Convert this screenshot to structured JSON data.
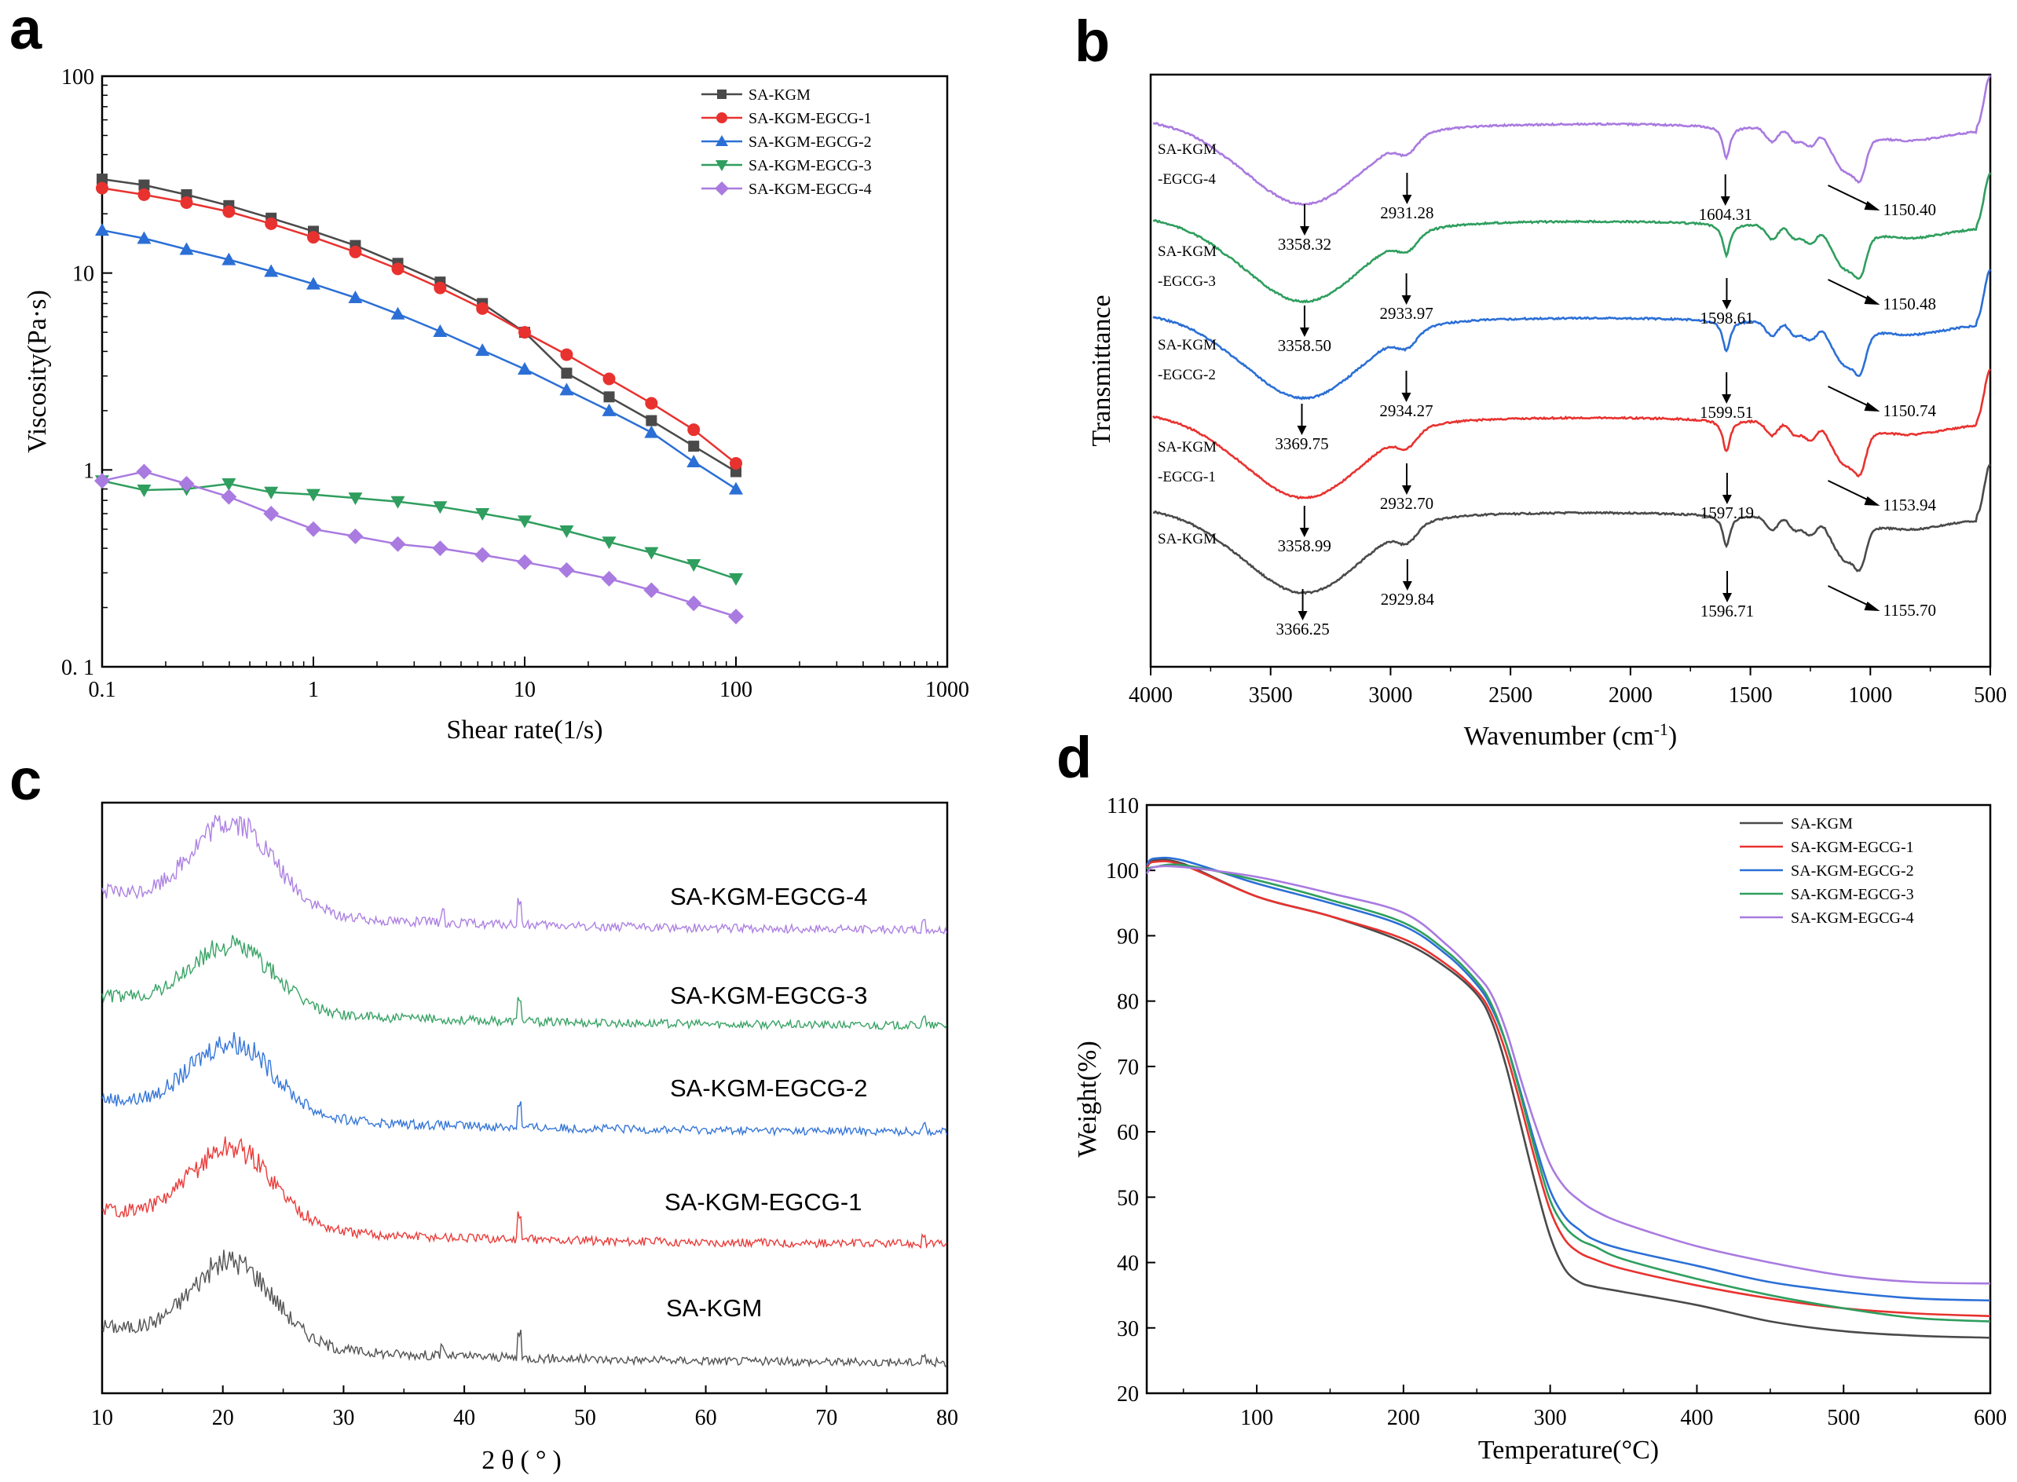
{
  "colors": {
    "SA-KGM": "#4a4a4a",
    "SA-KGM-EGCG-1": "#e8322f",
    "SA-KGM-EGCG-2": "#2b6fd6",
    "SA-KGM-EGCG-3": "#2f9e5e",
    "SA-KGM-EGCG-4": "#a97ae0"
  },
  "chart_data": [
    {
      "panel": "a",
      "type": "line",
      "xscale": "log",
      "yscale": "log",
      "xlabel": "Shear rate(1/s)",
      "ylabel": "Viscosity(Pa·s)",
      "xlim": [
        0.1,
        1000
      ],
      "ylim": [
        0.1,
        100
      ],
      "xticks": [
        0.1,
        1,
        10,
        100,
        1000
      ],
      "xtick_labels": [
        "0.1",
        "1",
        "10",
        "100",
        "1000"
      ],
      "yticks": [
        0.1,
        1,
        10,
        100
      ],
      "ytick_labels": [
        "0. 1",
        "1",
        "10",
        "100"
      ],
      "legend_position": "top-right",
      "x": [
        0.1,
        0.158,
        0.251,
        0.398,
        0.631,
        1,
        1.58,
        2.51,
        3.98,
        6.31,
        10,
        15.8,
        25.1,
        39.8,
        63.1,
        100
      ],
      "series": [
        {
          "name": "SA-KGM",
          "marker": "square",
          "values": [
            30,
            28,
            25,
            22,
            19,
            16.3,
            13.8,
            11.2,
            9.0,
            7.0,
            5.0,
            3.1,
            2.35,
            1.78,
            1.32,
            0.98
          ]
        },
        {
          "name": "SA-KGM-EGCG-1",
          "marker": "circle",
          "values": [
            27,
            25,
            22.8,
            20.5,
            17.8,
            15.2,
            12.8,
            10.5,
            8.4,
            6.6,
            5.0,
            3.85,
            2.9,
            2.18,
            1.6,
            1.08
          ]
        },
        {
          "name": "SA-KGM-EGCG-2",
          "marker": "triangle-up",
          "values": [
            16.5,
            15,
            13.2,
            11.7,
            10.2,
            8.8,
            7.5,
            6.2,
            5.05,
            4.05,
            3.25,
            2.55,
            2.0,
            1.55,
            1.1,
            0.8
          ]
        },
        {
          "name": "SA-KGM-EGCG-3",
          "marker": "triangle-down",
          "values": [
            0.88,
            0.79,
            0.8,
            0.85,
            0.77,
            0.75,
            0.72,
            0.69,
            0.65,
            0.6,
            0.55,
            0.49,
            0.43,
            0.38,
            0.33,
            0.28
          ]
        },
        {
          "name": "SA-KGM-EGCG-4",
          "marker": "diamond",
          "values": [
            0.88,
            0.98,
            0.85,
            0.73,
            0.6,
            0.5,
            0.46,
            0.42,
            0.4,
            0.37,
            0.34,
            0.31,
            0.28,
            0.245,
            0.21,
            0.18
          ]
        }
      ]
    },
    {
      "panel": "b",
      "type": "line",
      "title": "",
      "xlabel": "Wavenumber (cm",
      "xlabel_sup": "-1",
      "xlabel_end": ")",
      "ylabel": "Transmittance",
      "xlim": [
        4000,
        500
      ],
      "xticks": [
        4000,
        3500,
        3000,
        2500,
        2000,
        1500,
        1000,
        500
      ],
      "xtick_labels": [
        "4000",
        "3500",
        "3000",
        "2500",
        "2000",
        "1500",
        "1000",
        "500"
      ],
      "series": [
        {
          "name": "SA-KGM",
          "label_lines": [
            "SA-KGM"
          ],
          "annotations": [
            "3366.25",
            "2929.84",
            "1596.71",
            "1155.70"
          ]
        },
        {
          "name": "SA-KGM-EGCG-1",
          "label_lines": [
            "SA-KGM",
            "-EGCG-1"
          ],
          "annotations": [
            "3358.99",
            "2932.70",
            "1597.19",
            "1153.94"
          ]
        },
        {
          "name": "SA-KGM-EGCG-2",
          "label_lines": [
            "SA-KGM",
            "-EGCG-2"
          ],
          "annotations": [
            "3369.75",
            "2934.27",
            "1599.51",
            "1150.74"
          ]
        },
        {
          "name": "SA-KGM-EGCG-3",
          "label_lines": [
            "SA-KGM",
            "-EGCG-3"
          ],
          "annotations": [
            "3358.50",
            "2933.97",
            "1598.61",
            "1150.48"
          ]
        },
        {
          "name": "SA-KGM-EGCG-4",
          "label_lines": [
            "SA-KGM",
            "-EGCG-4"
          ],
          "annotations": [
            "3358.32",
            "2931.28",
            "1604.31",
            "1150.40"
          ]
        }
      ]
    },
    {
      "panel": "c",
      "type": "line",
      "xlabel": "2θ(°)",
      "ylabel": "",
      "xlim": [
        10,
        80
      ],
      "xticks": [
        10,
        20,
        30,
        40,
        50,
        60,
        70,
        80
      ],
      "xtick_labels": [
        "10",
        "20",
        "30",
        "40",
        "50",
        "60",
        "70",
        "80"
      ],
      "peak_2theta": 20.8,
      "series": [
        {
          "name": "SA-KGM",
          "label": "SA-KGM"
        },
        {
          "name": "SA-KGM-EGCG-1",
          "label": "SA-KGM-EGCG-1"
        },
        {
          "name": "SA-KGM-EGCG-2",
          "label": "SA-KGM-EGCG-2"
        },
        {
          "name": "SA-KGM-EGCG-3",
          "label": "SA-KGM-EGCG-3"
        },
        {
          "name": "SA-KGM-EGCG-4",
          "label": "SA-KGM-EGCG-4"
        }
      ]
    },
    {
      "panel": "d",
      "type": "line",
      "xlabel": "Temperature(°C)",
      "ylabel": "Weight(%)",
      "xlim": [
        25,
        600
      ],
      "ylim": [
        20,
        110
      ],
      "xticks": [
        100,
        200,
        300,
        400,
        500,
        600
      ],
      "xtick_labels": [
        "100",
        "200",
        "300",
        "400",
        "500",
        "600"
      ],
      "yticks": [
        20,
        30,
        40,
        50,
        60,
        70,
        80,
        90,
        100,
        110
      ],
      "ytick_labels": [
        "20",
        "30",
        "40",
        "50",
        "60",
        "70",
        "80",
        "90",
        "100",
        "110"
      ],
      "legend_position": "top-right",
      "series": [
        {
          "name": "SA-KGM",
          "x": [
            25,
            30,
            50,
            100,
            150,
            200,
            230,
            250,
            260,
            270,
            280,
            290,
            300,
            310,
            320,
            330,
            350,
            400,
            450,
            500,
            550,
            600
          ],
          "y": [
            100.3,
            101.5,
            101.0,
            96.0,
            93.0,
            89.0,
            85.0,
            81.0,
            77.0,
            70.0,
            61.0,
            52.0,
            44.0,
            39.0,
            37.0,
            36.3,
            35.5,
            33.5,
            31.0,
            29.5,
            28.8,
            28.5
          ]
        },
        {
          "name": "SA-KGM-EGCG-1",
          "x": [
            25,
            30,
            50,
            100,
            150,
            200,
            230,
            250,
            260,
            270,
            280,
            290,
            300,
            310,
            320,
            330,
            350,
            400,
            450,
            500,
            550,
            600
          ],
          "y": [
            100.5,
            101.3,
            100.8,
            96.0,
            93.0,
            89.5,
            85.5,
            81.5,
            78.0,
            72.0,
            64.0,
            55.5,
            48.0,
            43.5,
            41.5,
            40.5,
            39.0,
            36.5,
            34.5,
            33.0,
            32.2,
            31.8
          ]
        },
        {
          "name": "SA-KGM-EGCG-2",
          "x": [
            25,
            30,
            50,
            100,
            150,
            200,
            230,
            250,
            260,
            270,
            280,
            290,
            300,
            310,
            320,
            330,
            350,
            400,
            450,
            500,
            550,
            600
          ],
          "y": [
            100.8,
            101.8,
            101.5,
            98.0,
            95.0,
            91.5,
            87.0,
            82.5,
            79.0,
            73.5,
            66.0,
            58.0,
            51.0,
            47.0,
            45.0,
            43.5,
            42.0,
            39.5,
            37.0,
            35.5,
            34.5,
            34.2
          ]
        },
        {
          "name": "SA-KGM-EGCG-3",
          "x": [
            25,
            30,
            50,
            100,
            150,
            200,
            230,
            250,
            260,
            270,
            280,
            290,
            300,
            310,
            320,
            330,
            350,
            400,
            450,
            500,
            550,
            600
          ],
          "y": [
            100.2,
            100.5,
            100.8,
            98.5,
            95.5,
            92.0,
            87.5,
            83.0,
            79.5,
            73.5,
            65.5,
            57.0,
            49.5,
            45.5,
            43.5,
            42.5,
            40.5,
            37.5,
            35.0,
            33.0,
            31.5,
            31.0
          ]
        },
        {
          "name": "SA-KGM-EGCG-4",
          "x": [
            25,
            30,
            50,
            100,
            150,
            200,
            230,
            250,
            260,
            270,
            280,
            290,
            300,
            310,
            320,
            330,
            350,
            400,
            450,
            500,
            550,
            600
          ],
          "y": [
            99.5,
            100.5,
            100.5,
            99.0,
            96.5,
            93.5,
            88.5,
            84.0,
            81.0,
            75.5,
            68.0,
            61.0,
            55.0,
            51.5,
            49.5,
            48.0,
            46.0,
            42.5,
            40.0,
            38.0,
            37.0,
            36.8
          ]
        }
      ]
    }
  ]
}
